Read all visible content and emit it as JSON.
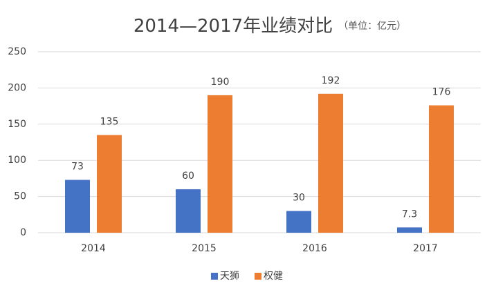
{
  "chart_data": {
    "type": "bar",
    "title": "2014—2017年业绩对比",
    "subtitle": "（单位：亿元）",
    "categories": [
      "2014",
      "2015",
      "2016",
      "2017"
    ],
    "series": [
      {
        "name": "天狮",
        "color": "#4472c4",
        "values": [
          73,
          60,
          30,
          7.3
        ]
      },
      {
        "name": "权健",
        "color": "#ed7d31",
        "values": [
          135,
          190,
          192,
          176
        ]
      }
    ],
    "ylim": [
      0,
      250
    ],
    "yticks": [
      0,
      50,
      100,
      150,
      200,
      250
    ],
    "grid": true,
    "legend": "bottom"
  }
}
